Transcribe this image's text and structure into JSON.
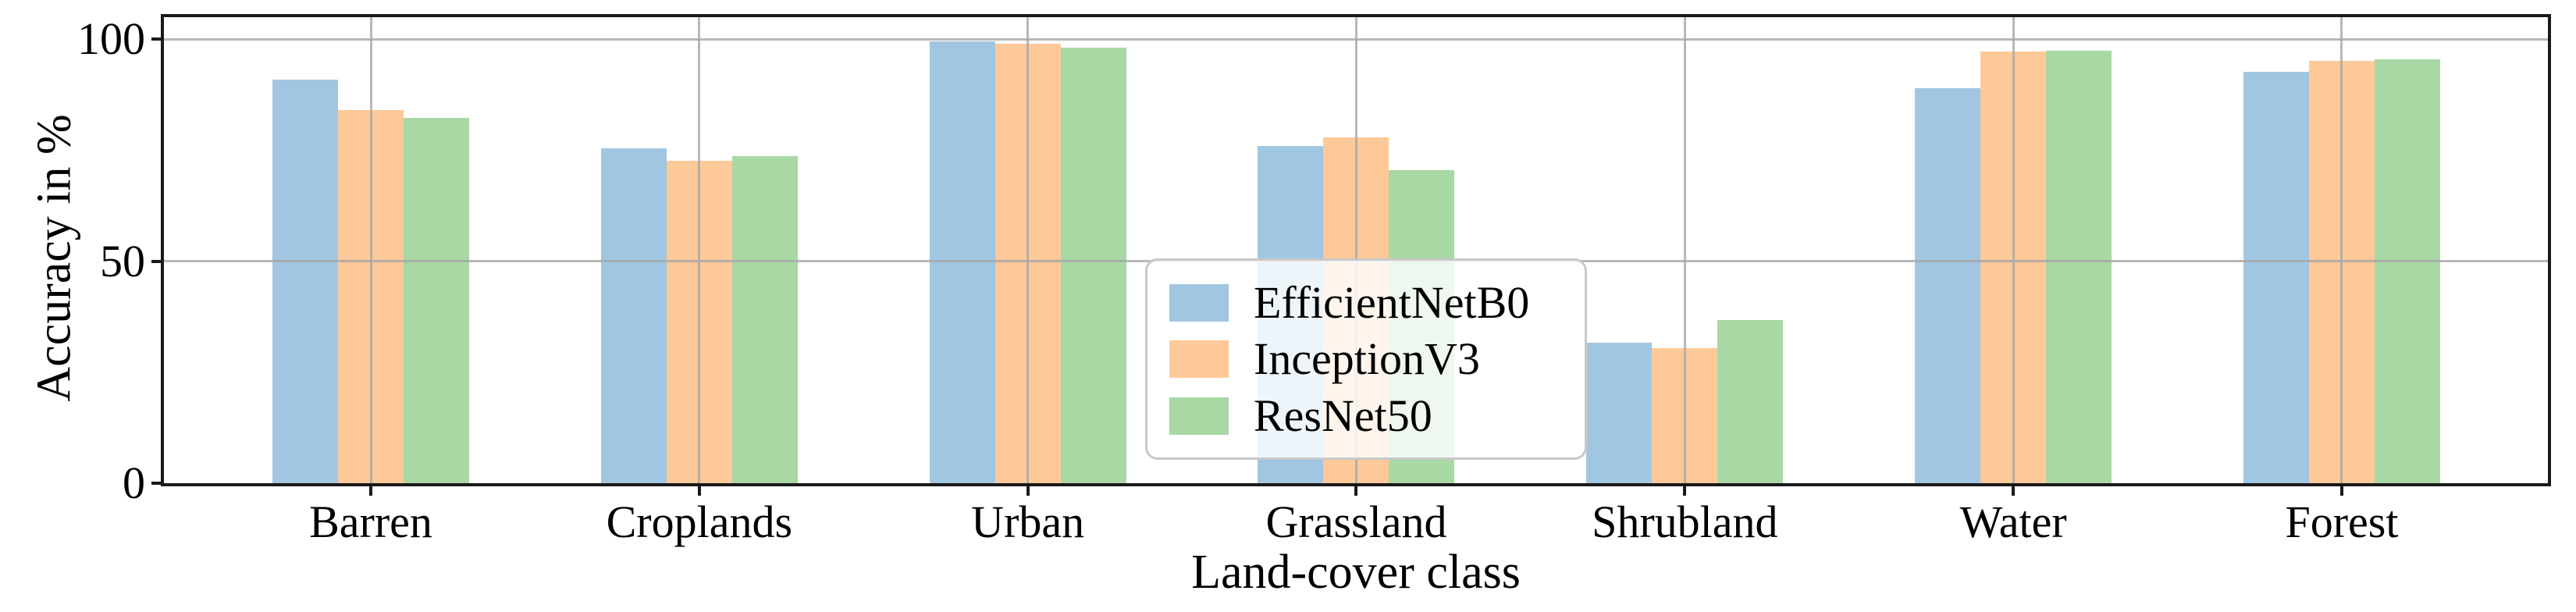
{
  "chart_data": {
    "type": "bar",
    "title": "",
    "xlabel": "Land-cover class",
    "ylabel": "Accuracy in %",
    "categories": [
      "Barren",
      "Croplands",
      "Urban",
      "Grassland",
      "Shrubland",
      "Water",
      "Forest"
    ],
    "series": [
      {
        "name": "EfficientNetB0",
        "color": "#A1C6E2",
        "values": [
          91.0,
          75.5,
          99.6,
          76.0,
          31.6,
          89.0,
          92.7
        ]
      },
      {
        "name": "InceptionV3",
        "color": "#FEC999",
        "values": [
          84.0,
          72.6,
          99.0,
          78.0,
          30.5,
          97.2,
          95.2
        ]
      },
      {
        "name": "ResNet50",
        "color": "#A8D8A4",
        "values": [
          82.4,
          73.7,
          98.1,
          70.6,
          36.8,
          97.5,
          95.5
        ]
      }
    ],
    "ylim": [
      0,
      105
    ],
    "yticks": [
      0,
      50,
      100
    ],
    "yticklabels": [
      "0",
      "50",
      "100"
    ],
    "grid": true,
    "grid_color": "#a6a6a6",
    "axis_color": "#1a1a1a",
    "legend_position": "center"
  }
}
